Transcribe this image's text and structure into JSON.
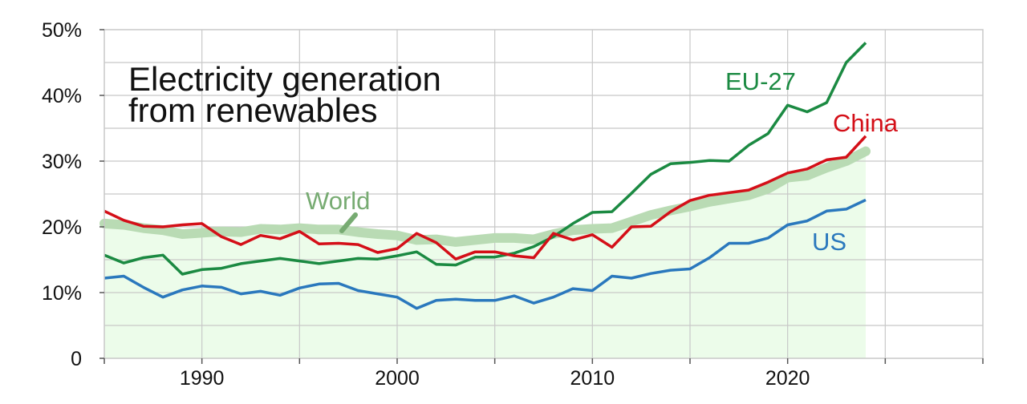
{
  "chart_data": {
    "type": "line",
    "title_lines": [
      "Electricity generation",
      "from renewables"
    ],
    "xlabel": "",
    "ylabel": "",
    "xlim": [
      1985,
      2030
    ],
    "ylim": [
      0,
      50
    ],
    "grid": true,
    "x_ticks": [
      1990,
      2000,
      2010,
      2020
    ],
    "x_tick_labels": [
      "1990",
      "2000",
      "2010",
      "2020"
    ],
    "y_ticks": [
      0,
      10,
      20,
      30,
      40,
      50
    ],
    "y_tick_labels": [
      "0",
      "10%",
      "20%",
      "30%",
      "40%",
      "50%"
    ],
    "colors": {
      "world_band": "#b9dbb4",
      "world_fill": "#ecfcea",
      "world_label": "#77ab72",
      "eu": "#1b8a42",
      "china": "#d40f18",
      "us": "#2a78bd",
      "grid": "#c8c8c8"
    },
    "x": [
      1985,
      1986,
      1987,
      1988,
      1989,
      1990,
      1991,
      1992,
      1993,
      1994,
      1995,
      1996,
      1997,
      1998,
      1999,
      2000,
      2001,
      2002,
      2003,
      2004,
      2005,
      2006,
      2007,
      2008,
      2009,
      2010,
      2011,
      2012,
      2013,
      2014,
      2015,
      2016,
      2017,
      2018,
      2019,
      2020,
      2021,
      2022,
      2023,
      2024
    ],
    "series": [
      {
        "key": "world",
        "name": "World",
        "values": [
          20.5,
          20.3,
          19.8,
          19.5,
          18.9,
          19.1,
          19.3,
          19.2,
          19.7,
          19.6,
          19.8,
          19.6,
          19.6,
          19.2,
          18.9,
          18.7,
          18.0,
          18.1,
          17.7,
          18.0,
          18.3,
          18.3,
          18.1,
          18.9,
          19.5,
          19.7,
          19.8,
          20.8,
          21.8,
          22.5,
          23.1,
          23.8,
          24.3,
          24.8,
          25.8,
          27.5,
          27.8,
          29.0,
          30.0,
          31.5
        ]
      },
      {
        "key": "eu",
        "name": "EU-27",
        "values": [
          15.7,
          14.5,
          15.3,
          15.7,
          12.8,
          13.5,
          13.7,
          14.4,
          14.8,
          15.2,
          14.8,
          14.4,
          14.8,
          15.2,
          15.1,
          15.6,
          16.2,
          14.3,
          14.2,
          15.4,
          15.4,
          16.0,
          17.0,
          18.5,
          20.5,
          22.2,
          22.3,
          25.1,
          28.0,
          29.6,
          29.8,
          30.1,
          30.0,
          32.4,
          34.2,
          38.5,
          37.5,
          38.9,
          45.0,
          48.0
        ]
      },
      {
        "key": "china",
        "name": "China",
        "values": [
          22.4,
          21.0,
          20.1,
          20.0,
          20.3,
          20.5,
          18.5,
          17.3,
          18.7,
          18.2,
          19.3,
          17.4,
          17.5,
          17.3,
          16.1,
          16.7,
          19.0,
          17.6,
          15.1,
          16.2,
          16.2,
          15.6,
          15.3,
          19.0,
          18.0,
          18.8,
          16.9,
          20.0,
          20.1,
          22.3,
          24.0,
          24.8,
          25.2,
          25.6,
          26.8,
          28.2,
          28.8,
          30.2,
          30.6,
          33.8
        ]
      },
      {
        "key": "us",
        "name": "US",
        "values": [
          12.2,
          12.5,
          10.8,
          9.3,
          10.4,
          11.0,
          10.8,
          9.8,
          10.2,
          9.6,
          10.7,
          11.3,
          11.4,
          10.3,
          9.8,
          9.3,
          7.6,
          8.8,
          9.0,
          8.8,
          8.8,
          9.5,
          8.4,
          9.3,
          10.6,
          10.3,
          12.5,
          12.2,
          12.9,
          13.4,
          13.6,
          15.3,
          17.5,
          17.5,
          18.3,
          20.3,
          20.9,
          22.4,
          22.7,
          24.1
        ]
      }
    ],
    "labels": {
      "world": "World",
      "eu": "EU-27",
      "china": "China",
      "us": "US"
    }
  }
}
